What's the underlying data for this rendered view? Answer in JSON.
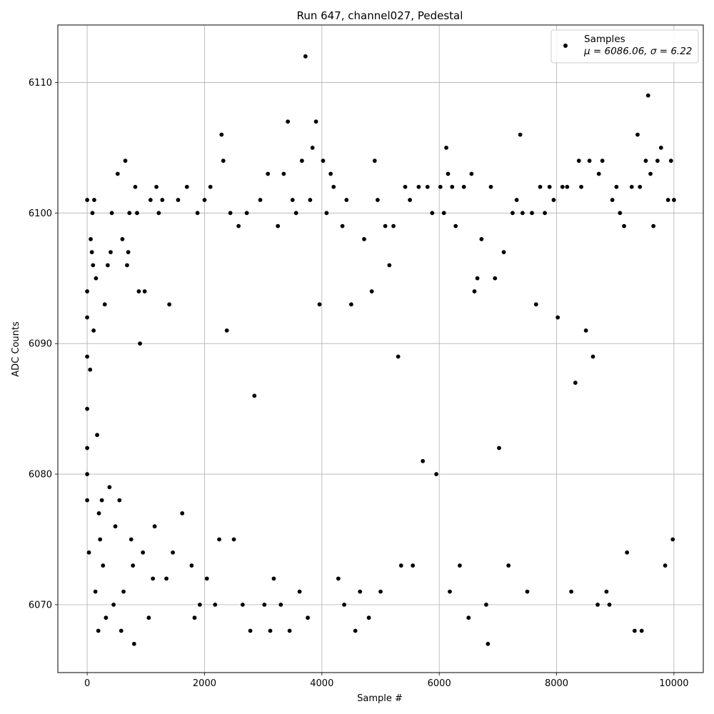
{
  "chart_data": {
    "type": "scatter",
    "title": "Run 647, channel027, Pedestal",
    "xlabel": "Sample #",
    "ylabel": "ADC Counts",
    "xlim": [
      -500,
      10500
    ],
    "ylim": [
      6064.8,
      6114.4
    ],
    "xticks": [
      0,
      2000,
      4000,
      6000,
      8000,
      10000
    ],
    "yticks": [
      6070,
      6080,
      6090,
      6100,
      6110
    ],
    "grid": true,
    "legend_position": "top-right",
    "legend_label": "Samples",
    "legend_stats": "μ = 6086.06, σ = 6.22",
    "marker_color": "#000000",
    "series": [
      {
        "name": "Samples",
        "points": [
          [
            0,
            6094
          ],
          [
            0,
            6092
          ],
          [
            0,
            6089
          ],
          [
            0,
            6085
          ],
          [
            0,
            6082
          ],
          [
            0,
            6080
          ],
          [
            0,
            6101
          ],
          [
            0,
            6078
          ],
          [
            30,
            6074
          ],
          [
            50,
            6088
          ],
          [
            60,
            6098
          ],
          [
            80,
            6097
          ],
          [
            90,
            6100
          ],
          [
            100,
            6096
          ],
          [
            110,
            6091
          ],
          [
            120,
            6101
          ],
          [
            140,
            6071
          ],
          [
            150,
            6095
          ],
          [
            170,
            6083
          ],
          [
            190,
            6068
          ],
          [
            200,
            6077
          ],
          [
            220,
            6075
          ],
          [
            250,
            6078
          ],
          [
            270,
            6073
          ],
          [
            300,
            6093
          ],
          [
            320,
            6069
          ],
          [
            350,
            6096
          ],
          [
            380,
            6079
          ],
          [
            400,
            6097
          ],
          [
            420,
            6100
          ],
          [
            450,
            6070
          ],
          [
            480,
            6076
          ],
          [
            520,
            6103
          ],
          [
            550,
            6078
          ],
          [
            580,
            6068
          ],
          [
            600,
            6098
          ],
          [
            620,
            6071
          ],
          [
            650,
            6104
          ],
          [
            680,
            6096
          ],
          [
            700,
            6097
          ],
          [
            720,
            6100
          ],
          [
            750,
            6075
          ],
          [
            780,
            6073
          ],
          [
            800,
            6067
          ],
          [
            820,
            6102
          ],
          [
            850,
            6100
          ],
          [
            880,
            6094
          ],
          [
            900,
            6090
          ],
          [
            950,
            6074
          ],
          [
            980,
            6094
          ],
          [
            1050,
            6069
          ],
          [
            1080,
            6101
          ],
          [
            1120,
            6072
          ],
          [
            1150,
            6076
          ],
          [
            1180,
            6102
          ],
          [
            1220,
            6100
          ],
          [
            1280,
            6101
          ],
          [
            1350,
            6072
          ],
          [
            1400,
            6093
          ],
          [
            1460,
            6074
          ],
          [
            1550,
            6101
          ],
          [
            1620,
            6077
          ],
          [
            1700,
            6102
          ],
          [
            1780,
            6073
          ],
          [
            1830,
            6069
          ],
          [
            1880,
            6100
          ],
          [
            1920,
            6070
          ],
          [
            2000,
            6101
          ],
          [
            2040,
            6072
          ],
          [
            2100,
            6102
          ],
          [
            2180,
            6070
          ],
          [
            2250,
            6075
          ],
          [
            2290,
            6106
          ],
          [
            2320,
            6104
          ],
          [
            2380,
            6091
          ],
          [
            2440,
            6100
          ],
          [
            2500,
            6075
          ],
          [
            2580,
            6099
          ],
          [
            2650,
            6070
          ],
          [
            2720,
            6100
          ],
          [
            2780,
            6068
          ],
          [
            2850,
            6086
          ],
          [
            2950,
            6101
          ],
          [
            3020,
            6070
          ],
          [
            3080,
            6103
          ],
          [
            3120,
            6068
          ],
          [
            3180,
            6072
          ],
          [
            3250,
            6099
          ],
          [
            3300,
            6070
          ],
          [
            3350,
            6103
          ],
          [
            3420,
            6107
          ],
          [
            3450,
            6068
          ],
          [
            3500,
            6101
          ],
          [
            3560,
            6100
          ],
          [
            3620,
            6071
          ],
          [
            3660,
            6104
          ],
          [
            3720,
            6112
          ],
          [
            3760,
            6069
          ],
          [
            3800,
            6101
          ],
          [
            3840,
            6105
          ],
          [
            3900,
            6107
          ],
          [
            3960,
            6093
          ],
          [
            4020,
            6104
          ],
          [
            4080,
            6100
          ],
          [
            4150,
            6103
          ],
          [
            4200,
            6102
          ],
          [
            4280,
            6072
          ],
          [
            4350,
            6099
          ],
          [
            4380,
            6070
          ],
          [
            4420,
            6101
          ],
          [
            4500,
            6093
          ],
          [
            4570,
            6068
          ],
          [
            4650,
            6071
          ],
          [
            4720,
            6098
          ],
          [
            4800,
            6069
          ],
          [
            4850,
            6094
          ],
          [
            4900,
            6104
          ],
          [
            4950,
            6101
          ],
          [
            5000,
            6071
          ],
          [
            5080,
            6099
          ],
          [
            5150,
            6096
          ],
          [
            5220,
            6099
          ],
          [
            5300,
            6089
          ],
          [
            5350,
            6073
          ],
          [
            5420,
            6102
          ],
          [
            5500,
            6101
          ],
          [
            5550,
            6073
          ],
          [
            5650,
            6102
          ],
          [
            5720,
            6081
          ],
          [
            5800,
            6102
          ],
          [
            5880,
            6100
          ],
          [
            5950,
            6080
          ],
          [
            6020,
            6102
          ],
          [
            6080,
            6100
          ],
          [
            6120,
            6105
          ],
          [
            6150,
            6103
          ],
          [
            6180,
            6071
          ],
          [
            6220,
            6102
          ],
          [
            6280,
            6099
          ],
          [
            6350,
            6073
          ],
          [
            6420,
            6102
          ],
          [
            6500,
            6069
          ],
          [
            6550,
            6103
          ],
          [
            6600,
            6094
          ],
          [
            6650,
            6095
          ],
          [
            6720,
            6098
          ],
          [
            6800,
            6070
          ],
          [
            6830,
            6067
          ],
          [
            6880,
            6102
          ],
          [
            6950,
            6095
          ],
          [
            7020,
            6082
          ],
          [
            7100,
            6097
          ],
          [
            7180,
            6073
          ],
          [
            7250,
            6100
          ],
          [
            7320,
            6101
          ],
          [
            7380,
            6106
          ],
          [
            7420,
            6100
          ],
          [
            7500,
            6071
          ],
          [
            7580,
            6100
          ],
          [
            7650,
            6093
          ],
          [
            7720,
            6102
          ],
          [
            7800,
            6100
          ],
          [
            7880,
            6102
          ],
          [
            7950,
            6101
          ],
          [
            8020,
            6092
          ],
          [
            8100,
            6102
          ],
          [
            8180,
            6102
          ],
          [
            8250,
            6071
          ],
          [
            8320,
            6087
          ],
          [
            8380,
            6104
          ],
          [
            8420,
            6102
          ],
          [
            8500,
            6091
          ],
          [
            8560,
            6104
          ],
          [
            8620,
            6089
          ],
          [
            8700,
            6070
          ],
          [
            8720,
            6103
          ],
          [
            8780,
            6104
          ],
          [
            8850,
            6071
          ],
          [
            8900,
            6070
          ],
          [
            8950,
            6101
          ],
          [
            9020,
            6102
          ],
          [
            9080,
            6100
          ],
          [
            9150,
            6099
          ],
          [
            9200,
            6074
          ],
          [
            9280,
            6102
          ],
          [
            9330,
            6068
          ],
          [
            9380,
            6106
          ],
          [
            9420,
            6102
          ],
          [
            9450,
            6068
          ],
          [
            9520,
            6104
          ],
          [
            9560,
            6109
          ],
          [
            9600,
            6103
          ],
          [
            9650,
            6099
          ],
          [
            9720,
            6104
          ],
          [
            9780,
            6105
          ],
          [
            9850,
            6073
          ],
          [
            9900,
            6101
          ],
          [
            9950,
            6104
          ],
          [
            10000,
            6101
          ],
          [
            9980,
            6075
          ]
        ]
      }
    ]
  }
}
